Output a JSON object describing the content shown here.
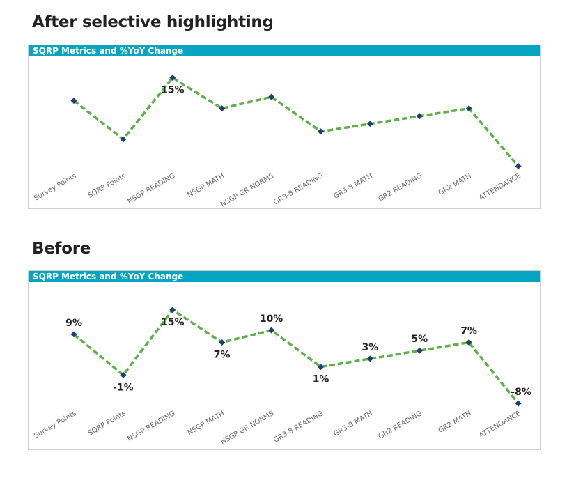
{
  "colors": {
    "title_bar": "#05a5c1",
    "line": "#5db047",
    "marker": "#1f3f6e"
  },
  "headings": {
    "after": "After selective highlighting",
    "before": "Before"
  },
  "chart_data": [
    {
      "type": "line",
      "title": "SQRP Metrics and %YoY Change",
      "categories": [
        "Survey Points",
        "SQRP Points",
        "NSGP READING",
        "NSGP MATH",
        "NSGP GR NORMS",
        "GR3-8 READING",
        "GR3-8 MATH",
        "GR2 READING",
        "GR2 MATH",
        "ATTENDANCE"
      ],
      "values": [
        9,
        -1,
        15,
        7,
        10,
        1,
        3,
        5,
        7,
        -8
      ],
      "data_labels": [
        "",
        "",
        "15%",
        "",
        "",
        "",
        "",
        "",
        "",
        ""
      ],
      "ylim": [
        -9,
        16
      ],
      "grid": false,
      "line_style": "dashed"
    },
    {
      "type": "line",
      "title": "SQRP Metrics and %YoY Change",
      "categories": [
        "Survey Points",
        "SQRP Points",
        "NSGP READING",
        "NSGP MATH",
        "NSGP GR NORMS",
        "GR3-8 READING",
        "GR3-8 MATH",
        "GR2 READING",
        "GR2 MATH",
        "ATTENDANCE"
      ],
      "values": [
        9,
        -1,
        15,
        7,
        10,
        1,
        3,
        5,
        7,
        -8
      ],
      "data_labels": [
        "9%",
        "-1%",
        "15%",
        "7%",
        "10%",
        "1%",
        "3%",
        "5%",
        "7%",
        "-8%"
      ],
      "ylim": [
        -9,
        16
      ],
      "grid": false,
      "line_style": "dashed"
    }
  ]
}
